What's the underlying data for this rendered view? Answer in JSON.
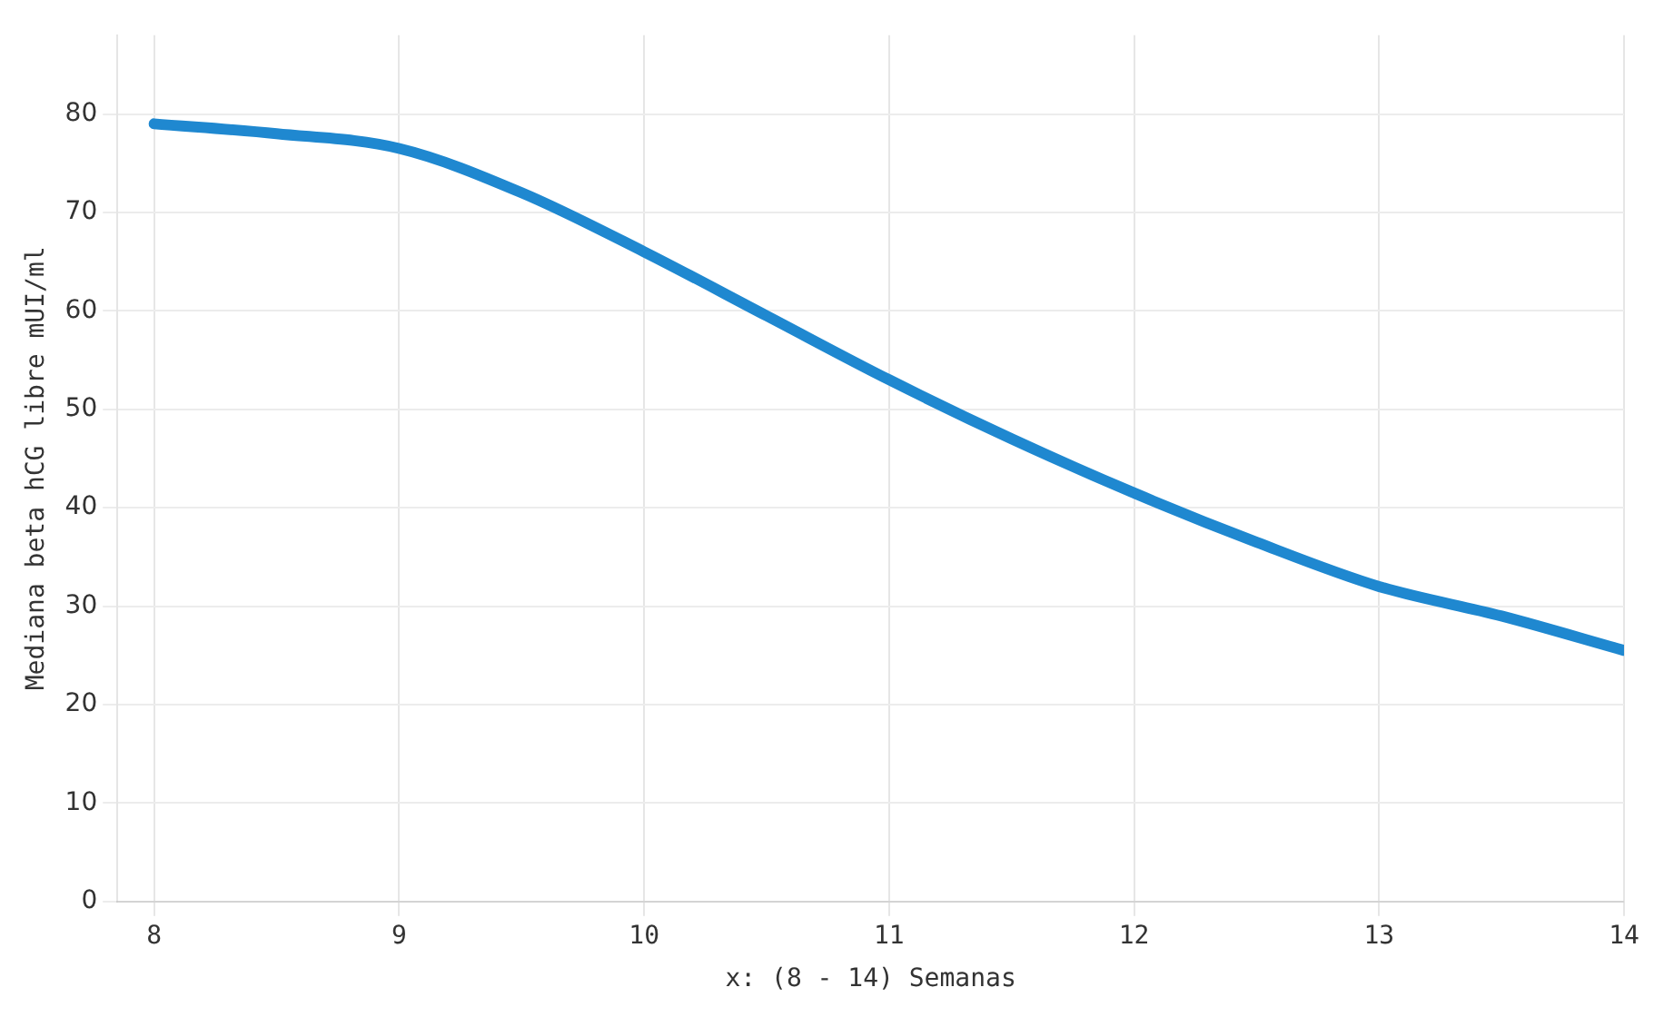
{
  "chart_data": {
    "type": "line",
    "xlabel": "x: (8 - 14) Semanas",
    "ylabel": "Mediana beta hCG libre mUI/ml",
    "x": [
      8,
      8.5,
      9,
      9.5,
      10,
      10.5,
      11,
      11.5,
      12,
      12.5,
      13,
      13.5,
      14
    ],
    "series": [
      {
        "color": "#1f88d0",
        "values": [
          79,
          78,
          76.5,
          72,
          66,
          59.5,
          53,
          47,
          41.5,
          36.5,
          32,
          29,
          25.5
        ]
      }
    ],
    "xlim": [
      7.85,
      14
    ],
    "xticks": [
      8,
      9,
      10,
      11,
      12,
      13,
      14
    ],
    "ylim": [
      0,
      88
    ],
    "yticks": [
      0,
      10,
      20,
      30,
      40,
      50,
      60,
      70,
      80
    ],
    "grid": true,
    "legend": false,
    "marker": "none",
    "line_style": "solid"
  }
}
